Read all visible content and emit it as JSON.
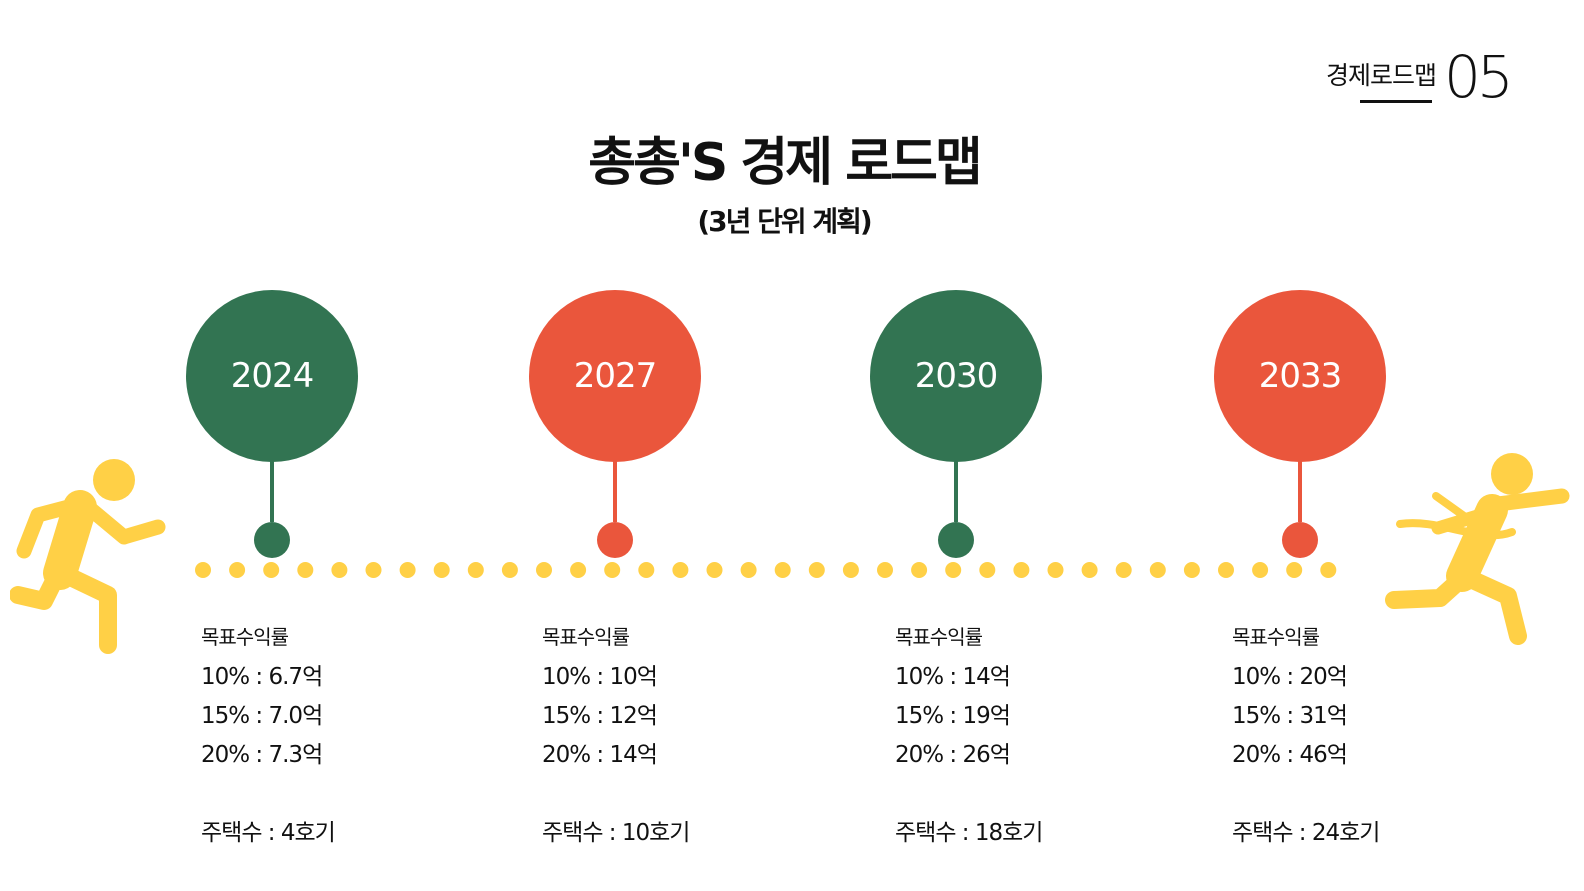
{
  "badge": {
    "label": "경제로드맵",
    "number": "05"
  },
  "title": "총총'S 경제 로드맵",
  "subtitle": "(3년 단위 계획)",
  "colors": {
    "green": "#327452",
    "red": "#EA563C",
    "yellow": "#FFD046"
  },
  "icons": {
    "left": "running-person-icon",
    "right": "finish-line-runner-icon"
  },
  "milestones": [
    {
      "year": "2024",
      "color": "green",
      "target_label": "목표수익률",
      "rates": [
        "10% : 6.7억",
        "15% : 7.0억",
        "20% : 7.3억"
      ],
      "houses": "주택수 : 4호기"
    },
    {
      "year": "2027",
      "color": "red",
      "target_label": "목표수익률",
      "rates": [
        "10% : 10억",
        "15% : 12억",
        "20% : 14억"
      ],
      "houses": "주택수 : 10호기"
    },
    {
      "year": "2030",
      "color": "green",
      "target_label": "목표수익률",
      "rates": [
        "10% : 14억",
        "15% : 19억",
        "20% : 26억"
      ],
      "houses": "주택수 : 18호기"
    },
    {
      "year": "2033",
      "color": "red",
      "target_label": "목표수익률",
      "rates": [
        "10% : 20억",
        "15% : 31억",
        "20% : 46억"
      ],
      "houses": "주택수 : 24호기"
    }
  ]
}
